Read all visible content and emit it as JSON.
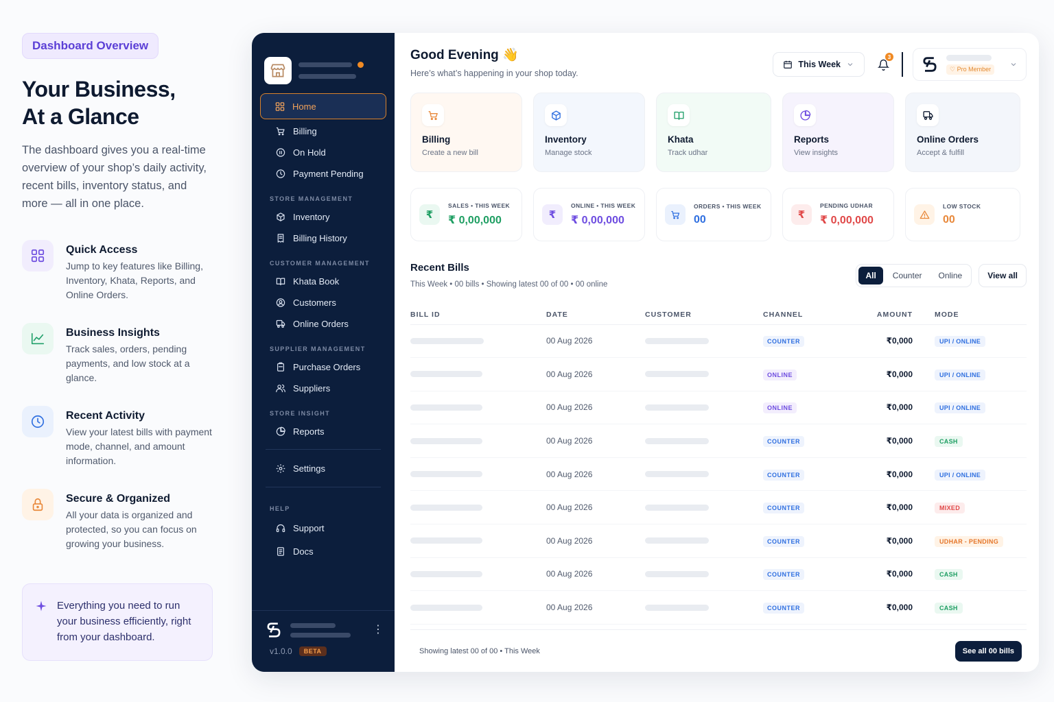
{
  "intro": {
    "pill": "Dashboard Overview",
    "title_line1": "Your Business,",
    "title_line2": "At a Glance",
    "description": "The dashboard gives you a real-time overview of your shop’s daily activity, recent bills, inventory status, and more — all in one place.",
    "features": [
      {
        "title": "Quick Access",
        "desc": "Jump to key features like Billing, Inventory, Khata, Reports, and Online Orders.",
        "icon": "grid-icon",
        "color": "#6d4ce0"
      },
      {
        "title": "Business Insights",
        "desc": "Track sales, orders, pending payments, and low stock at a glance.",
        "icon": "trend-icon",
        "color": "#22a06b"
      },
      {
        "title": "Recent Activity",
        "desc": "View your latest bills with payment mode, channel, and amount information.",
        "icon": "clock-icon",
        "color": "#2f6fe0"
      },
      {
        "title": "Secure & Organized",
        "desc": "All your data is organized and protected, so you can focus on growing your business.",
        "icon": "lock-icon",
        "color": "#e8883a"
      }
    ],
    "callout": "Everything you need to run your business efficiently, right from your dashboard."
  },
  "sidebar": {
    "home": "Home",
    "items_top": [
      "Billing",
      "On Hold",
      "Payment Pending"
    ],
    "section_store": "STORE MANAGEMENT",
    "items_store": [
      "Inventory",
      "Billing History"
    ],
    "section_customer": "CUSTOMER MANAGEMENT",
    "items_customer": [
      "Khata Book",
      "Customers",
      "Online Orders"
    ],
    "section_supplier": "SUPPLIER MANAGEMENT",
    "items_supplier": [
      "Purchase Orders",
      "Suppliers"
    ],
    "section_insight": "STORE INSIGHT",
    "items_insight": [
      "Reports"
    ],
    "settings": "Settings",
    "section_help": "HELP",
    "items_help": [
      "Support",
      "Docs"
    ],
    "version": "v1.0.0",
    "beta": "BETA"
  },
  "header": {
    "greeting": "Good Evening",
    "subtitle": "Here’s what’s happening in your shop today.",
    "period": "This Week",
    "notifications": "3",
    "pro": "Pro Member"
  },
  "cards": [
    {
      "title": "Billing",
      "sub": "Create a new bill",
      "bg": "#fff8f2",
      "color": "#e8883a"
    },
    {
      "title": "Inventory",
      "sub": "Manage stock",
      "bg": "#f3f7fd",
      "color": "#2f6fe0"
    },
    {
      "title": "Khata",
      "sub": "Track udhar",
      "bg": "#f2fbf6",
      "color": "#22a06b"
    },
    {
      "title": "Reports",
      "sub": "View insights",
      "bg": "#f6f3fd",
      "color": "#6d4ce0"
    },
    {
      "title": "Online Orders",
      "sub": "Accept & fulfill",
      "bg": "#f3f6fb",
      "color": "#0e1a30"
    }
  ],
  "stats": [
    {
      "label": "SALES • THIS WEEK",
      "value": "₹ 0,00,000",
      "icon": "₹",
      "color": "#1e9e62",
      "bg": "#eaf8f1"
    },
    {
      "label": "ONLINE • THIS WEEK",
      "value": "₹ 0,00,000",
      "icon": "₹",
      "color": "#6d4ce0",
      "bg": "#f1edfd"
    },
    {
      "label": "ORDERS • THIS WEEK",
      "value": "00",
      "icon": "cart",
      "color": "#2f6fe0",
      "bg": "#eaf1fd"
    },
    {
      "label": "PENDING UDHAR",
      "value": "₹ 0,00,000",
      "icon": "₹",
      "color": "#e04848",
      "bg": "#fdecec"
    },
    {
      "label": "LOW STOCK",
      "value": "00",
      "icon": "warn",
      "color": "#e8883a",
      "bg": "#fff3e6"
    }
  ],
  "recent": {
    "title": "Recent Bills",
    "subtitle": "This Week • 00 bills • Showing latest 00 of 00 • 00 online",
    "filters": [
      "All",
      "Counter",
      "Online"
    ],
    "view_all": "View all",
    "columns": [
      "BILL ID",
      "DATE",
      "CUSTOMER",
      "CHANNEL",
      "AMOUNT",
      "MODE"
    ],
    "rows": [
      {
        "date": "00 Aug 2026",
        "channel": "COUNTER",
        "amount": "₹0,000",
        "mode": "UPI / ONLINE"
      },
      {
        "date": "00 Aug 2026",
        "channel": "ONLINE",
        "amount": "₹0,000",
        "mode": "UPI / ONLINE"
      },
      {
        "date": "00 Aug 2026",
        "channel": "ONLINE",
        "amount": "₹0,000",
        "mode": "UPI / ONLINE"
      },
      {
        "date": "00 Aug 2026",
        "channel": "COUNTER",
        "amount": "₹0,000",
        "mode": "CASH"
      },
      {
        "date": "00 Aug 2026",
        "channel": "COUNTER",
        "amount": "₹0,000",
        "mode": "UPI / ONLINE"
      },
      {
        "date": "00 Aug 2026",
        "channel": "COUNTER",
        "amount": "₹0,000",
        "mode": "MIXED"
      },
      {
        "date": "00 Aug 2026",
        "channel": "COUNTER",
        "amount": "₹0,000",
        "mode": "UDHAR - PENDING"
      },
      {
        "date": "00 Aug 2026",
        "channel": "COUNTER",
        "amount": "₹0,000",
        "mode": "CASH"
      },
      {
        "date": "00 Aug 2026",
        "channel": "COUNTER",
        "amount": "₹0,000",
        "mode": "CASH"
      }
    ],
    "footer": "Showing latest 00 of 00 • This Week",
    "see_all": "See all 00 bills"
  }
}
